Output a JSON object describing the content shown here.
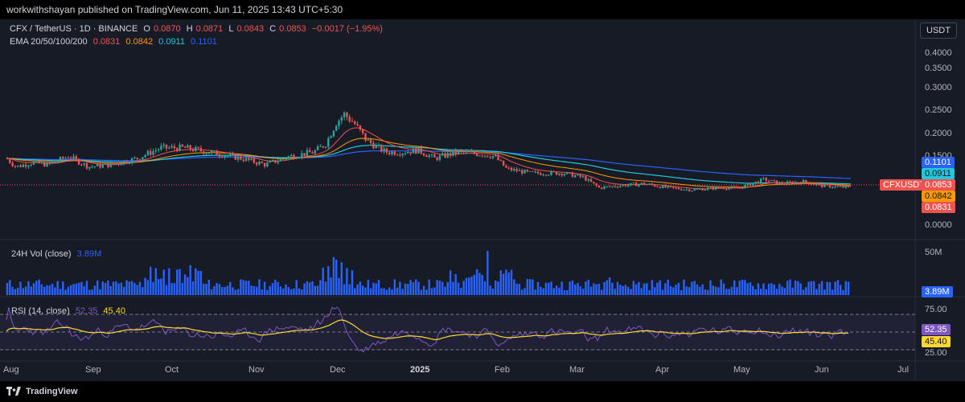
{
  "header": {
    "publish_info": "workwithshayan published on TradingView.com, Jun 11, 2025 13:43 UTC+5:30"
  },
  "symbol": {
    "title": "CFX / TetherUS · 1D · BINANCE",
    "o_label": "O",
    "o": "0.0870",
    "h_label": "H",
    "h": "0.0871",
    "l_label": "L",
    "l": "0.0843",
    "c_label": "C",
    "c": "0.0853",
    "change": "−0.0017 (−1.95%)"
  },
  "ema": {
    "label": "EMA 20/50/100/200",
    "v20": "0.0831",
    "v50": "0.0842",
    "v100": "0.0911",
    "v200": "0.1101"
  },
  "vol": {
    "label": "24H Vol (close)",
    "value": "3.89M",
    "tick": "50M"
  },
  "rsi": {
    "label": "RSI (14, close)",
    "value": "52.35",
    "ma": "45.40",
    "upper": "75.00",
    "lower": "25.00"
  },
  "currency_button": "USDT",
  "price_axis": [
    "0.4000",
    "0.3500",
    "0.3000",
    "0.2500",
    "0.2000",
    "0.1500",
    "0.1000",
    "0.0500",
    "0.0000"
  ],
  "price_tags": {
    "ema200": "0.1101",
    "ema100": "0.0911",
    "last": "0.0853",
    "ema50": "0.0842",
    "ema20": "0.0831",
    "symbol": "CFXUSDT"
  },
  "time_axis": [
    "Aug",
    "Sep",
    "Oct",
    "Nov",
    "Dec",
    "2025",
    "Feb",
    "Mar",
    "Apr",
    "May",
    "Jun",
    "Jul"
  ],
  "footer": {
    "brand": "TradingView"
  },
  "colors": {
    "up": "#26a69a",
    "down": "#ef5350",
    "ema20": "#ef5350",
    "ema50": "#ff9800",
    "ema100": "#26c6da",
    "ema200": "#2962ff",
    "vol": "#2962ff",
    "rsi": "#7e57c2",
    "rsi_ma": "#fdd835"
  },
  "chart_data": {
    "type": "line",
    "title": "CFX / TetherUS · 1D · BINANCE",
    "x": [
      "Aug",
      "Sep",
      "Oct",
      "Nov",
      "Dec",
      "2025",
      "Feb",
      "Mar",
      "Apr",
      "May",
      "Jun"
    ],
    "series": [
      {
        "name": "EMA 20/50/100/200",
        "values": [
          0.13,
          0.125,
          0.14,
          0.13,
          0.16,
          0.15,
          0.12,
          0.08,
          0.07,
          0.08,
          0.0853
        ]
      }
    ],
    "ylim": [
      0,
      0.42
    ]
  }
}
